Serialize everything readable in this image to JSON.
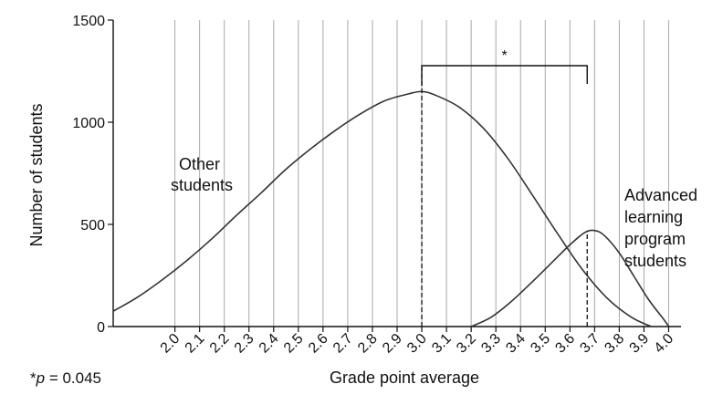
{
  "chart_data": {
    "type": "line",
    "xlabel": "Grade point average",
    "ylabel": "Number of students",
    "xlim": [
      1.75,
      4.05
    ],
    "ylim": [
      0,
      1500
    ],
    "x_ticks": [
      "2.0",
      "2.1",
      "2.2",
      "2.3",
      "2.4",
      "2.5",
      "2.6",
      "2.7",
      "2.8",
      "2.9",
      "3.0",
      "3.1",
      "3.2",
      "3.3",
      "3.4",
      "3.5",
      "3.6",
      "3.7",
      "3.8",
      "3.9",
      "4.0"
    ],
    "y_ticks": [
      "0",
      "500",
      "1000",
      "1500"
    ],
    "grid": "vertical lines at each x tick",
    "series": [
      {
        "name": "Other students",
        "x": [
          1.75,
          1.85,
          1.95,
          2.05,
          2.15,
          2.25,
          2.35,
          2.45,
          2.55,
          2.65,
          2.75,
          2.85,
          2.95,
          3.0,
          3.05,
          3.15,
          3.25,
          3.35,
          3.45,
          3.55,
          3.65,
          3.75,
          3.85,
          3.93
        ],
        "y": [
          75,
          145,
          230,
          325,
          430,
          545,
          655,
          770,
          870,
          960,
          1040,
          1105,
          1140,
          1150,
          1135,
          1075,
          970,
          820,
          640,
          455,
          280,
          140,
          45,
          0
        ]
      },
      {
        "name": "Advanced learning program students",
        "x": [
          3.2,
          3.28,
          3.36,
          3.44,
          3.52,
          3.6,
          3.66,
          3.7,
          3.74,
          3.8,
          3.86,
          3.92,
          3.98,
          4.0
        ],
        "y": [
          0,
          45,
          120,
          210,
          305,
          400,
          460,
          470,
          445,
          360,
          245,
          130,
          35,
          0
        ]
      }
    ],
    "means": [
      3.0,
      3.67
    ],
    "significance_label": "*",
    "footnote": {
      "prefix": "*",
      "p": "p",
      "rest": " = 0.045"
    },
    "annotations": {
      "other": [
        "Other",
        "students"
      ],
      "advanced": [
        "Advanced",
        "learning",
        "program",
        "students"
      ]
    }
  }
}
